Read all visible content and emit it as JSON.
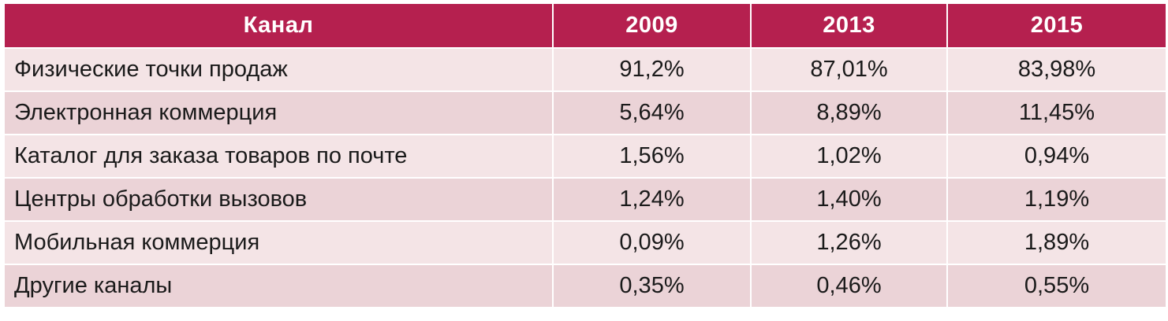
{
  "colors": {
    "header_bg": "#b5204f",
    "row_light": "#f4e4e6",
    "row_dark": "#ebd3d7",
    "text": "#1a1a1a",
    "header_text": "#ffffff"
  },
  "table": {
    "headers": [
      "Канал",
      "2009",
      "2013",
      "2015"
    ],
    "rows": [
      {
        "label": "Физические точки продаж",
        "values": [
          "91,2%",
          "87,01%",
          "83,98%"
        ]
      },
      {
        "label": "Электронная коммерция",
        "values": [
          "5,64%",
          "8,89%",
          "11,45%"
        ]
      },
      {
        "label": "Каталог для заказа товаров по почте",
        "values": [
          "1,56%",
          "1,02%",
          "0,94%"
        ]
      },
      {
        "label": "Центры обработки вызовов",
        "values": [
          "1,24%",
          "1,40%",
          "1,19%"
        ]
      },
      {
        "label": "Мобильная коммерция",
        "values": [
          "0,09%",
          "1,26%",
          "1,89%"
        ]
      },
      {
        "label": "Другие каналы",
        "values": [
          "0,35%",
          "0,46%",
          "0,55%"
        ]
      }
    ]
  }
}
